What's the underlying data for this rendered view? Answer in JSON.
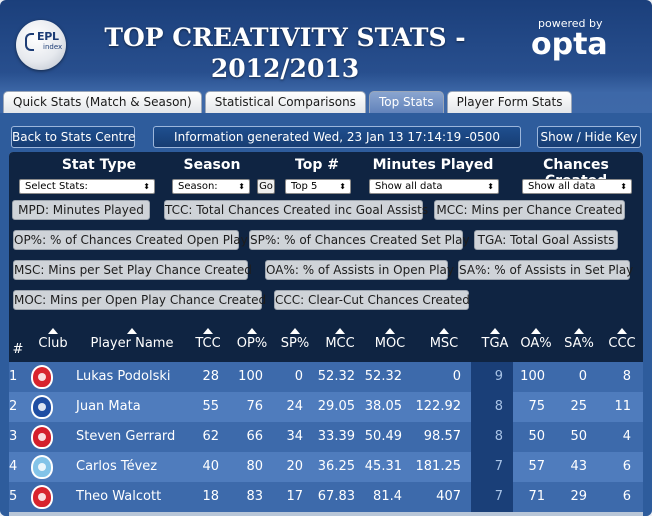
{
  "header": {
    "logo_top": "EPL",
    "logo_bottom": "index",
    "title_line1": "TOP CREATIVITY STATS -",
    "title_line2": "2012/2013",
    "powered_by": "powered by",
    "brand": "opta"
  },
  "tabs": [
    {
      "label": "Quick Stats (Match & Season)",
      "active": false
    },
    {
      "label": "Statistical Comparisons",
      "active": false
    },
    {
      "label": "Top Stats",
      "active": true
    },
    {
      "label": "Player Form Stats",
      "active": false
    }
  ],
  "toolbar": {
    "back_label": "Back to Stats Centre",
    "info_text": "Information generated Wed, 23 Jan 13 17:14:19 -0500",
    "toggle_key_label": "Show / Hide Key"
  },
  "filters": {
    "stat_type": {
      "heading": "Stat Type",
      "value": "Select Stats:"
    },
    "season": {
      "heading": "Season",
      "value": "Season:",
      "go_label": "Go"
    },
    "top": {
      "heading": "Top #",
      "value": "Top 5"
    },
    "minutes": {
      "heading": "Minutes Played",
      "value": "Show all data"
    },
    "chances": {
      "heading": "Chances Created",
      "value": "Show all data"
    }
  },
  "key": [
    "MPD: Minutes Played",
    "TCC: Total Chances Created inc Goal Assists",
    "MCC: Mins per Chance Created",
    "OP%: % of Chances Created Open Play",
    "SP%: % of Chances Created Set Play",
    "TGA: Total Goal Assists",
    "MSC: Mins per Set Play Chance Created",
    "OA%: % of Assists in Open Play",
    "SA%: % of Assists in Set Play",
    "MOC: Mins per Open Play Chance Created",
    "CCC: Clear-Cut Chances Created"
  ],
  "table": {
    "columns": [
      "#",
      "Club",
      "Player Name",
      "TCC",
      "OP%",
      "SP%",
      "MCC",
      "MOC",
      "MSC",
      "TGA",
      "OA%",
      "SA%",
      "CCC"
    ],
    "rows": [
      {
        "rank": "1",
        "club": "arsenal",
        "player": "Lukas Podolski",
        "tcc": "28",
        "op": "100",
        "sp": "0",
        "mcc": "52.32",
        "moc": "52.32",
        "msc": "0",
        "tga": "9",
        "oa": "100",
        "sa": "0",
        "ccc": "8"
      },
      {
        "rank": "2",
        "club": "chelsea",
        "player": "Juan Mata",
        "tcc": "55",
        "op": "76",
        "sp": "24",
        "mcc": "29.05",
        "moc": "38.05",
        "msc": "122.92",
        "tga": "8",
        "oa": "75",
        "sa": "25",
        "ccc": "11"
      },
      {
        "rank": "3",
        "club": "liverpool",
        "player": "Steven Gerrard",
        "tcc": "62",
        "op": "66",
        "sp": "34",
        "mcc": "33.39",
        "moc": "50.49",
        "msc": "98.57",
        "tga": "8",
        "oa": "50",
        "sa": "50",
        "ccc": "4"
      },
      {
        "rank": "4",
        "club": "mancity",
        "player": "Carlos Tévez",
        "tcc": "40",
        "op": "80",
        "sp": "20",
        "mcc": "36.25",
        "moc": "45.31",
        "msc": "181.25",
        "tga": "7",
        "oa": "57",
        "sa": "43",
        "ccc": "6"
      },
      {
        "rank": "5",
        "club": "arsenal",
        "player": "Theo Walcott",
        "tcc": "18",
        "op": "83",
        "sp": "17",
        "mcc": "67.83",
        "moc": "81.4",
        "msc": "407",
        "tga": "7",
        "oa": "71",
        "sa": "29",
        "ccc": "6"
      }
    ]
  },
  "colors": {
    "row_odd": "#3d6aab",
    "row_even": "#4f7cbd",
    "tga_column": "#1a3f78",
    "tga_text": "#a8c3e6",
    "header_dark": "#0f2442"
  }
}
